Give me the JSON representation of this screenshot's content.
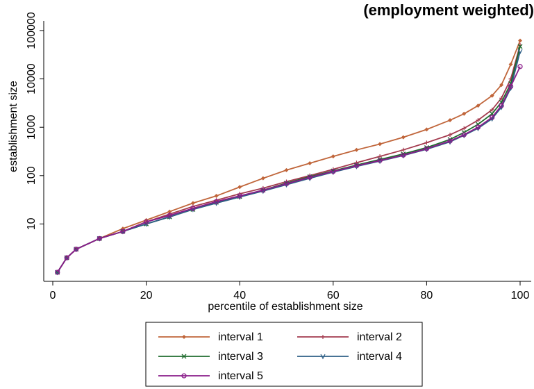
{
  "chart_data": {
    "type": "line",
    "title": "(employment weighted)",
    "xlabel": "percentile of establishment size",
    "ylabel": "establishment size",
    "xlim": [
      0,
      100
    ],
    "ylim": [
      1,
      100000
    ],
    "yscale": "log",
    "x_ticks": [
      0,
      20,
      40,
      60,
      80,
      100
    ],
    "y_ticks": [
      10,
      100,
      1000,
      10000,
      100000
    ],
    "grid": false,
    "legend_position": "bottom",
    "series": [
      {
        "name": "interval 1",
        "color": "#c0653a",
        "marker": "diamond",
        "x": [
          1,
          3,
          5,
          10,
          15,
          20,
          25,
          30,
          35,
          40,
          45,
          50,
          55,
          60,
          65,
          70,
          75,
          80,
          85,
          88,
          91,
          94,
          96,
          98,
          100
        ],
        "y": [
          1,
          2,
          3,
          5,
          8,
          12,
          18,
          27,
          38,
          58,
          88,
          130,
          180,
          250,
          340,
          450,
          620,
          900,
          1400,
          1900,
          2800,
          4500,
          7500,
          20000,
          62000
        ]
      },
      {
        "name": "interval 2",
        "color": "#a33a4e",
        "marker": "plus",
        "x": [
          1,
          3,
          5,
          10,
          15,
          20,
          25,
          30,
          35,
          40,
          45,
          50,
          55,
          60,
          65,
          70,
          75,
          80,
          85,
          88,
          91,
          94,
          96,
          98,
          100
        ],
        "y": [
          1,
          2,
          3,
          5,
          7,
          11,
          16,
          23,
          31,
          42,
          55,
          75,
          100,
          135,
          185,
          250,
          340,
          480,
          700,
          950,
          1400,
          2300,
          4000,
          10000,
          50000
        ]
      },
      {
        "name": "interval 3",
        "color": "#1f6b2e",
        "marker": "x",
        "x": [
          1,
          3,
          5,
          10,
          15,
          20,
          25,
          30,
          35,
          40,
          45,
          50,
          55,
          60,
          65,
          70,
          75,
          80,
          85,
          88,
          91,
          94,
          96,
          98,
          100
        ],
        "y": [
          1,
          2,
          3,
          5,
          7,
          10,
          14,
          20,
          28,
          37,
          50,
          70,
          95,
          125,
          165,
          215,
          280,
          380,
          560,
          780,
          1150,
          1900,
          3300,
          8000,
          47000
        ]
      },
      {
        "name": "interval 4",
        "color": "#2e5f86",
        "marker": "triangle",
        "x": [
          1,
          3,
          5,
          10,
          15,
          20,
          25,
          30,
          35,
          40,
          45,
          50,
          55,
          60,
          65,
          70,
          75,
          80,
          85,
          88,
          91,
          94,
          96,
          98,
          100
        ],
        "y": [
          1,
          2,
          3,
          5,
          7,
          10,
          14,
          20,
          27,
          36,
          48,
          65,
          88,
          118,
          155,
          200,
          260,
          350,
          500,
          680,
          950,
          1500,
          2600,
          6500,
          37000
        ]
      },
      {
        "name": "interval 5",
        "color": "#8a1c8a",
        "marker": "circle",
        "x": [
          1,
          3,
          5,
          10,
          15,
          20,
          25,
          30,
          35,
          40,
          45,
          50,
          55,
          60,
          65,
          70,
          75,
          80,
          85,
          88,
          91,
          94,
          96,
          98,
          100
        ],
        "y": [
          1,
          2,
          3,
          5,
          7,
          11,
          15,
          21,
          29,
          38,
          50,
          68,
          92,
          122,
          160,
          205,
          265,
          360,
          520,
          700,
          1000,
          1600,
          2800,
          7000,
          18000
        ]
      }
    ]
  }
}
